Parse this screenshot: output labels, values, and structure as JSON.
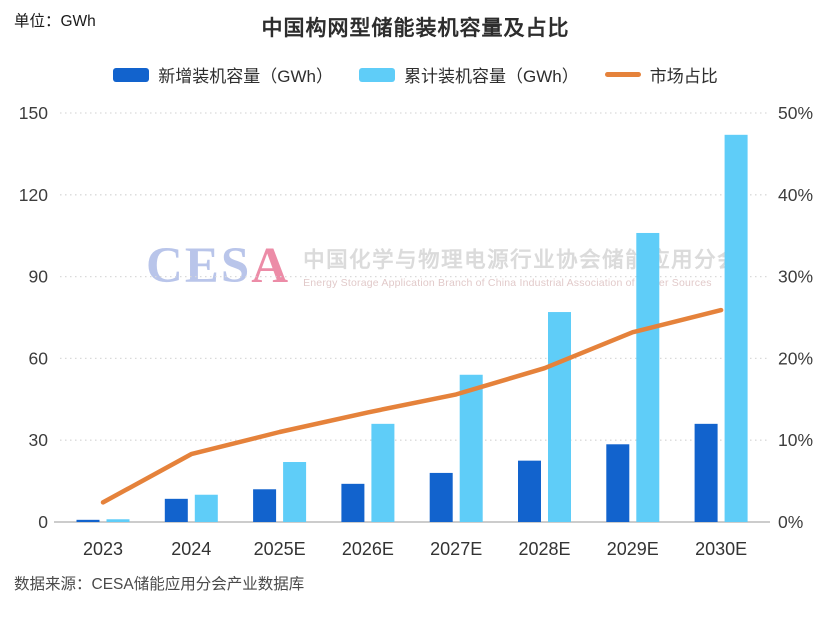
{
  "header": {
    "unit_label": "单位：GWh"
  },
  "chart_data": {
    "type": "combo-bar-line",
    "title": "中国构网型储能装机容量及占比",
    "categories": [
      "2023",
      "2024",
      "2025E",
      "2026E",
      "2027E",
      "2028E",
      "2029E",
      "2030E"
    ],
    "series": [
      {
        "name": "新增装机容量（GWh）",
        "type": "bar",
        "axis": "left",
        "color": "#1263cd",
        "values": [
          0.8,
          8.5,
          12,
          14,
          18,
          22.5,
          28.5,
          36
        ]
      },
      {
        "name": "累计装机容量（GWh）",
        "type": "bar",
        "axis": "left",
        "color": "#5fcdf8",
        "values": [
          1,
          10,
          22,
          36,
          54,
          77,
          106,
          142
        ]
      },
      {
        "name": "市场占比",
        "type": "line",
        "axis": "right",
        "color": "#e5823b",
        "values": [
          2.4,
          8.3,
          11,
          13.4,
          15.6,
          18.8,
          23.2,
          25.9
        ]
      }
    ],
    "left_axis": {
      "unit": "GWh",
      "min": 0,
      "max": 150,
      "step": 30,
      "tick_labels": [
        "0",
        "30",
        "60",
        "90",
        "120",
        "150"
      ]
    },
    "right_axis": {
      "unit": "%",
      "min": 0,
      "max": 50,
      "step": 10,
      "tick_labels": [
        "0%",
        "10%",
        "20%",
        "30%",
        "40%",
        "50%"
      ]
    },
    "legend_position": "top",
    "grid": "dotted-horizontal"
  },
  "watermark": {
    "logo_prefix": "CES",
    "logo_suffix": "A",
    "cn": "中国化学与物理电源行业协会储能应用分会",
    "en": "Energy Storage Application Branch of China Industrial Association of Power Sources"
  },
  "footer": {
    "source": "数据来源：CESA储能应用分会产业数据库"
  },
  "colors": {
    "bar_new": "#1263cd",
    "bar_cumulative": "#5fcdf8",
    "share_line": "#e5823b",
    "grid_line": "#d9d9d9",
    "axis_line": "#cccccc",
    "tick_text": "#3d3d3d",
    "x_label_text": "#333333",
    "title_text": "#2d2d2d"
  }
}
